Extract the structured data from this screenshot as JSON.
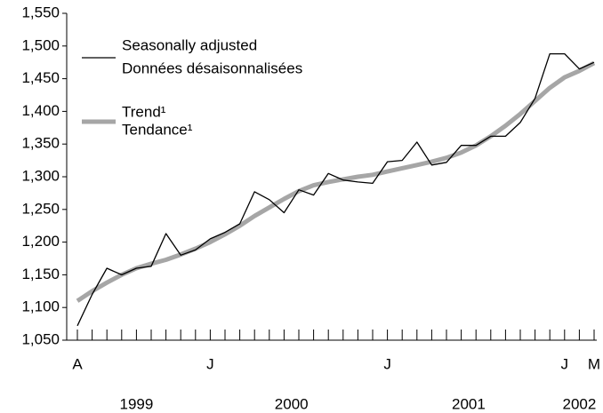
{
  "chart_data": {
    "type": "line",
    "categories": [
      "A",
      null,
      null,
      null,
      null,
      null,
      null,
      null,
      null,
      "J",
      null,
      null,
      null,
      null,
      null,
      null,
      null,
      null,
      null,
      null,
      null,
      "J",
      null,
      null,
      null,
      null,
      null,
      null,
      null,
      null,
      null,
      null,
      null,
      "J",
      null,
      "M"
    ],
    "year_labels": [
      "1999",
      "2000",
      "2001",
      "2002"
    ],
    "series": [
      {
        "name": "Seasonally adjusted",
        "name_fr": "Données désaisonnalisées",
        "color": "#000000",
        "values": [
          1072,
          1120,
          1160,
          1150,
          1160,
          1163,
          1213,
          1180,
          1188,
          1205,
          1215,
          1228,
          1277,
          1265,
          1245,
          1280,
          1272,
          1305,
          1295,
          1292,
          1290,
          1323,
          1325,
          1353,
          1318,
          1322,
          1348,
          1348,
          1362,
          1362,
          1383,
          1420,
          1488,
          1488,
          1465,
          1475
        ]
      },
      {
        "name": "Trend¹",
        "name_fr": "Tendance¹",
        "color": "#a6a6a6",
        "values": [
          1110,
          1125,
          1138,
          1150,
          1160,
          1167,
          1173,
          1181,
          1190,
          1200,
          1212,
          1225,
          1240,
          1253,
          1266,
          1278,
          1287,
          1292,
          1296,
          1300,
          1303,
          1308,
          1313,
          1318,
          1323,
          1329,
          1337,
          1348,
          1362,
          1378,
          1396,
          1416,
          1436,
          1452,
          1462,
          1474
        ]
      }
    ],
    "ylim": [
      1050,
      1550
    ],
    "yticks": [
      {
        "value": 1050,
        "label": "1,050"
      },
      {
        "value": 1100,
        "label": "1,100"
      },
      {
        "value": 1150,
        "label": "1,150"
      },
      {
        "value": 1200,
        "label": "1,200"
      },
      {
        "value": 1250,
        "label": "1,250"
      },
      {
        "value": 1300,
        "label": "1,300"
      },
      {
        "value": 1350,
        "label": "1,350"
      },
      {
        "value": 1400,
        "label": "1,400"
      },
      {
        "value": 1450,
        "label": "1,450"
      },
      {
        "value": 1500,
        "label": "1,500"
      },
      {
        "value": 1550,
        "label": "1,550"
      }
    ],
    "grid": false
  }
}
